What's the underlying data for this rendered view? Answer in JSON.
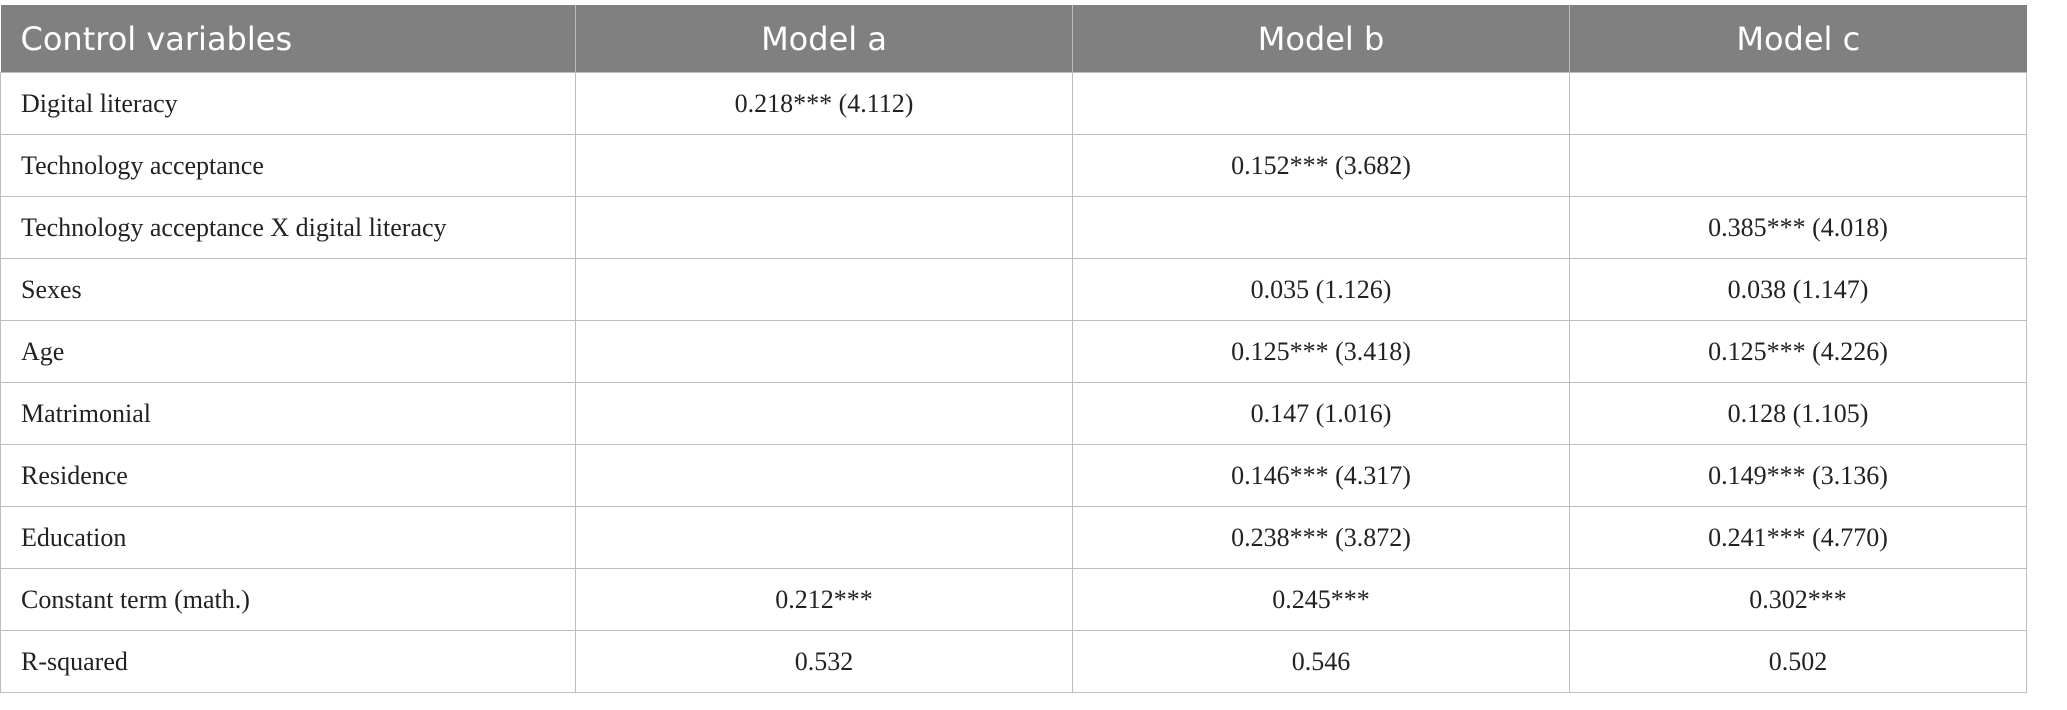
{
  "table": {
    "header": [
      "Control variables",
      "Model a",
      "Model b",
      "Model c"
    ],
    "rows": [
      [
        "Digital literacy",
        "0.218*** (4.112)",
        null,
        null
      ],
      [
        "Technology acceptance",
        null,
        "0.152*** (3.682)",
        null
      ],
      [
        "Technology acceptance X digital literacy",
        null,
        null,
        "0.385*** (4.018)"
      ],
      [
        "Sexes",
        null,
        "0.035 (1.126)",
        "0.038 (1.147)"
      ],
      [
        "Age",
        null,
        "0.125*** (3.418)",
        "0.125*** (4.226)"
      ],
      [
        "Matrimonial",
        null,
        "0.147 (1.016)",
        "0.128 (1.105)"
      ],
      [
        "Residence",
        null,
        "0.146*** (4.317)",
        "0.149*** (3.136)"
      ],
      [
        "Education",
        null,
        "0.238*** (3.872)",
        "0.241*** (4.770)"
      ],
      [
        "Constant term (math.)",
        "0.212***",
        "0.245***",
        "0.302***"
      ],
      [
        "R-squared",
        "0.532",
        "0.546",
        "0.502"
      ]
    ]
  }
}
